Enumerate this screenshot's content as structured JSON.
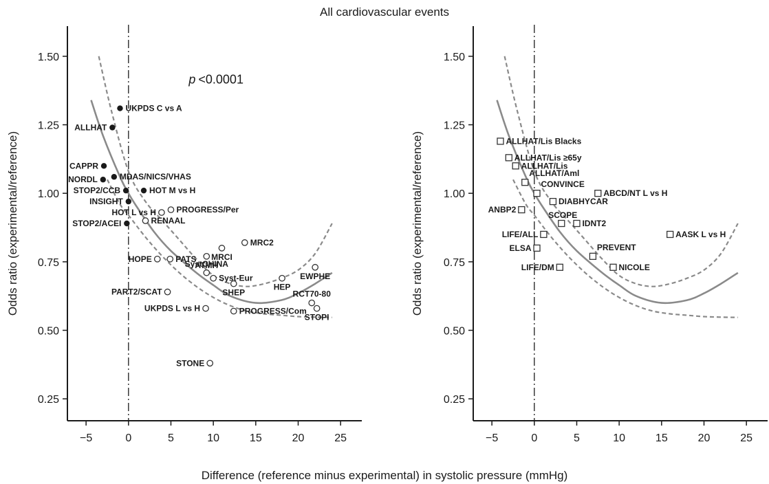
{
  "figure": {
    "title": "All cardiovascular events",
    "xlabel": "Difference (reference minus experimental) in systolic pressure (mmHg)"
  },
  "colors": {
    "fit": "#8a8a8a",
    "ci": "#8a8a8a",
    "axis": "#1a1a1a"
  },
  "chart_data": [
    {
      "type": "scatter",
      "ylabel": "Odds ratio (experimental/reference)",
      "xlim": [
        -7.2,
        27.5
      ],
      "ylim": [
        0.17,
        1.61
      ],
      "xticks": [
        -5,
        0,
        5,
        10,
        15,
        20,
        25
      ],
      "xtick_labels": [
        "−5",
        "0",
        "5",
        "10",
        "15",
        "20",
        "25"
      ],
      "yticks": [
        0.25,
        0.5,
        0.75,
        1.0,
        1.25,
        1.5
      ],
      "ytick_labels": [
        "0.25",
        "0.50",
        "0.75",
        "1.00",
        "1.25",
        "1.50"
      ],
      "annotation": "<0.0001",
      "annotation_prefix": "p",
      "fit_curve": [
        [
          -4.4,
          1.34
        ],
        [
          -3,
          1.21
        ],
        [
          -1,
          1.06
        ],
        [
          0,
          1.0
        ],
        [
          1,
          0.95
        ],
        [
          3,
          0.86
        ],
        [
          5,
          0.79
        ],
        [
          8,
          0.71
        ],
        [
          10,
          0.665
        ],
        [
          12,
          0.625
        ],
        [
          15,
          0.6
        ],
        [
          18,
          0.61
        ],
        [
          20,
          0.635
        ],
        [
          22,
          0.67
        ],
        [
          24,
          0.71
        ]
      ],
      "ci_upper": [
        [
          -3.5,
          1.5
        ],
        [
          -2,
          1.3
        ],
        [
          0,
          1.08
        ],
        [
          2,
          0.97
        ],
        [
          4,
          0.9
        ],
        [
          6,
          0.83
        ],
        [
          8,
          0.76
        ],
        [
          10,
          0.7
        ],
        [
          12,
          0.67
        ],
        [
          14,
          0.66
        ],
        [
          16,
          0.67
        ],
        [
          18,
          0.69
        ],
        [
          20,
          0.72
        ],
        [
          22,
          0.78
        ],
        [
          24,
          0.89
        ]
      ],
      "ci_lower": [
        [
          -2.5,
          1.05
        ],
        [
          -1,
          0.96
        ],
        [
          0,
          0.92
        ],
        [
          2,
          0.84
        ],
        [
          4,
          0.77
        ],
        [
          6,
          0.71
        ],
        [
          8,
          0.66
        ],
        [
          10,
          0.62
        ],
        [
          12,
          0.59
        ],
        [
          14,
          0.57
        ],
        [
          16,
          0.56
        ],
        [
          18,
          0.555
        ],
        [
          20,
          0.55
        ],
        [
          22,
          0.548
        ],
        [
          24,
          0.547
        ]
      ],
      "points": [
        {
          "label": "UKPDS C vs A",
          "x": -1.0,
          "y": 1.31,
          "marker": "filled",
          "pos": "right"
        },
        {
          "label": "ALLHAT",
          "x": -1.9,
          "y": 1.24,
          "marker": "filled",
          "pos": "left"
        },
        {
          "label": "CAPPR",
          "x": -2.9,
          "y": 1.1,
          "marker": "filled",
          "pos": "left"
        },
        {
          "label": "NORDL",
          "x": -3.0,
          "y": 1.05,
          "marker": "filled",
          "pos": "left"
        },
        {
          "label": "MDAS/NICS/VHAS",
          "x": -1.7,
          "y": 1.06,
          "marker": "filled",
          "pos": "right"
        },
        {
          "label": "STOP2/CCB",
          "x": -0.3,
          "y": 1.01,
          "marker": "filled",
          "pos": "left"
        },
        {
          "label": "HOT M vs H",
          "x": 1.8,
          "y": 1.01,
          "marker": "filled",
          "pos": "right"
        },
        {
          "label": "INSIGHT",
          "x": 0.0,
          "y": 0.97,
          "marker": "filled",
          "pos": "left"
        },
        {
          "label": "HOT L vs H",
          "x": 3.9,
          "y": 0.93,
          "marker": "open",
          "pos": "left"
        },
        {
          "label": "PROGRESS/Per",
          "x": 5.0,
          "y": 0.94,
          "marker": "open",
          "pos": "right"
        },
        {
          "label": "STOP2/ACEI",
          "x": -0.2,
          "y": 0.89,
          "marker": "filled",
          "pos": "left"
        },
        {
          "label": "RENAAL",
          "x": 2.0,
          "y": 0.9,
          "marker": "open",
          "pos": "right"
        },
        {
          "label": "MRC2",
          "x": 13.7,
          "y": 0.82,
          "marker": "open",
          "pos": "right"
        },
        {
          "label": "MRCI",
          "x": 11.0,
          "y": 0.8,
          "marker": "open",
          "pos": "below"
        },
        {
          "label": "ATMH",
          "x": 9.2,
          "y": 0.77,
          "marker": "open",
          "pos": "below"
        },
        {
          "label": "HOPE",
          "x": 3.4,
          "y": 0.76,
          "marker": "open",
          "pos": "left"
        },
        {
          "label": "PATS",
          "x": 4.9,
          "y": 0.76,
          "marker": "open",
          "pos": "right"
        },
        {
          "label": "SystCHINA",
          "x": 9.2,
          "y": 0.71,
          "marker": "open",
          "pos": "above"
        },
        {
          "label": "Syst-Eur",
          "x": 10.0,
          "y": 0.69,
          "marker": "open",
          "pos": "right"
        },
        {
          "label": "SHEP",
          "x": 12.4,
          "y": 0.67,
          "marker": "open",
          "pos": "below"
        },
        {
          "label": "HEP",
          "x": 18.1,
          "y": 0.69,
          "marker": "open",
          "pos": "below"
        },
        {
          "label": "EWPHE",
          "x": 22.0,
          "y": 0.73,
          "marker": "open",
          "pos": "below"
        },
        {
          "label": "PART2/SCAT",
          "x": 4.6,
          "y": 0.64,
          "marker": "open",
          "pos": "left"
        },
        {
          "label": "RCT70-80",
          "x": 21.6,
          "y": 0.6,
          "marker": "open",
          "pos": "above"
        },
        {
          "label": "UKPDS L vs H",
          "x": 9.1,
          "y": 0.58,
          "marker": "open",
          "pos": "left"
        },
        {
          "label": "PROGRESS/Com",
          "x": 12.4,
          "y": 0.57,
          "marker": "open",
          "pos": "right"
        },
        {
          "label": "STOPI",
          "x": 22.2,
          "y": 0.58,
          "marker": "open",
          "pos": "below"
        },
        {
          "label": "STONE",
          "x": 9.6,
          "y": 0.38,
          "marker": "open",
          "pos": "left"
        }
      ]
    },
    {
      "type": "scatter",
      "ylabel": "Odds ratio (experimental/reference)",
      "xlim": [
        -7.2,
        27.5
      ],
      "ylim": [
        0.17,
        1.61
      ],
      "xticks": [
        -5,
        0,
        5,
        10,
        15,
        20,
        25
      ],
      "xtick_labels": [
        "−5",
        "0",
        "5",
        "10",
        "15",
        "20",
        "25"
      ],
      "yticks": [
        0.25,
        0.5,
        0.75,
        1.0,
        1.25,
        1.5
      ],
      "ytick_labels": [
        "0.25",
        "0.50",
        "0.75",
        "1.00",
        "1.25",
        "1.50"
      ],
      "fit_curve": [
        [
          -4.4,
          1.34
        ],
        [
          -3,
          1.21
        ],
        [
          -1,
          1.06
        ],
        [
          0,
          1.0
        ],
        [
          1,
          0.95
        ],
        [
          3,
          0.86
        ],
        [
          5,
          0.79
        ],
        [
          8,
          0.71
        ],
        [
          10,
          0.665
        ],
        [
          12,
          0.625
        ],
        [
          15,
          0.6
        ],
        [
          18,
          0.61
        ],
        [
          20,
          0.635
        ],
        [
          22,
          0.67
        ],
        [
          24,
          0.71
        ]
      ],
      "ci_upper": [
        [
          -3.5,
          1.5
        ],
        [
          -2,
          1.3
        ],
        [
          0,
          1.08
        ],
        [
          2,
          0.97
        ],
        [
          4,
          0.9
        ],
        [
          6,
          0.83
        ],
        [
          8,
          0.76
        ],
        [
          10,
          0.7
        ],
        [
          12,
          0.67
        ],
        [
          14,
          0.66
        ],
        [
          16,
          0.67
        ],
        [
          18,
          0.69
        ],
        [
          20,
          0.72
        ],
        [
          22,
          0.78
        ],
        [
          24,
          0.89
        ]
      ],
      "ci_lower": [
        [
          -2.5,
          1.05
        ],
        [
          -1,
          0.96
        ],
        [
          0,
          0.92
        ],
        [
          2,
          0.84
        ],
        [
          4,
          0.77
        ],
        [
          6,
          0.71
        ],
        [
          8,
          0.66
        ],
        [
          10,
          0.62
        ],
        [
          12,
          0.59
        ],
        [
          14,
          0.57
        ],
        [
          16,
          0.56
        ],
        [
          18,
          0.555
        ],
        [
          20,
          0.55
        ],
        [
          22,
          0.548
        ],
        [
          24,
          0.547
        ]
      ],
      "points": [
        {
          "label": "ALLHAT/Lis Blacks",
          "x": -4.0,
          "y": 1.19,
          "marker": "square",
          "pos": "right"
        },
        {
          "label": "ALLHAT/Lis ≥65y",
          "x": -3.0,
          "y": 1.13,
          "marker": "square",
          "pos": "right"
        },
        {
          "label": "ALLHAT/Lis",
          "x": -2.2,
          "y": 1.1,
          "marker": "square",
          "pos": "right"
        },
        {
          "label": "ALLHAT/Aml",
          "x": -1.1,
          "y": 1.04,
          "marker": "square",
          "pos": "above-right"
        },
        {
          "label": "CONVINCE",
          "x": 0.3,
          "y": 1.0,
          "marker": "square",
          "pos": "above-right"
        },
        {
          "label": "ABCD/NT L vs H",
          "x": 7.5,
          "y": 1.0,
          "marker": "square",
          "pos": "right"
        },
        {
          "label": "DIABHYCAR",
          "x": 2.2,
          "y": 0.97,
          "marker": "square",
          "pos": "right"
        },
        {
          "label": "ANBP2",
          "x": -1.5,
          "y": 0.94,
          "marker": "square",
          "pos": "left"
        },
        {
          "label": "SCOPE",
          "x": 3.2,
          "y": 0.89,
          "marker": "square",
          "pos": "above-left"
        },
        {
          "label": "IDNT2",
          "x": 5.0,
          "y": 0.89,
          "marker": "square",
          "pos": "right"
        },
        {
          "label": "LIFE/ALL",
          "x": 1.1,
          "y": 0.85,
          "marker": "square",
          "pos": "left"
        },
        {
          "label": "AASK L vs H",
          "x": 16.0,
          "y": 0.85,
          "marker": "square",
          "pos": "right"
        },
        {
          "label": "ELSA",
          "x": 0.3,
          "y": 0.8,
          "marker": "square",
          "pos": "left"
        },
        {
          "label": "PREVENT",
          "x": 6.9,
          "y": 0.77,
          "marker": "square",
          "pos": "above-right"
        },
        {
          "label": "LIFE/DM",
          "x": 3.0,
          "y": 0.73,
          "marker": "square",
          "pos": "left"
        },
        {
          "label": "NICOLE",
          "x": 9.3,
          "y": 0.73,
          "marker": "square",
          "pos": "right"
        }
      ]
    }
  ]
}
